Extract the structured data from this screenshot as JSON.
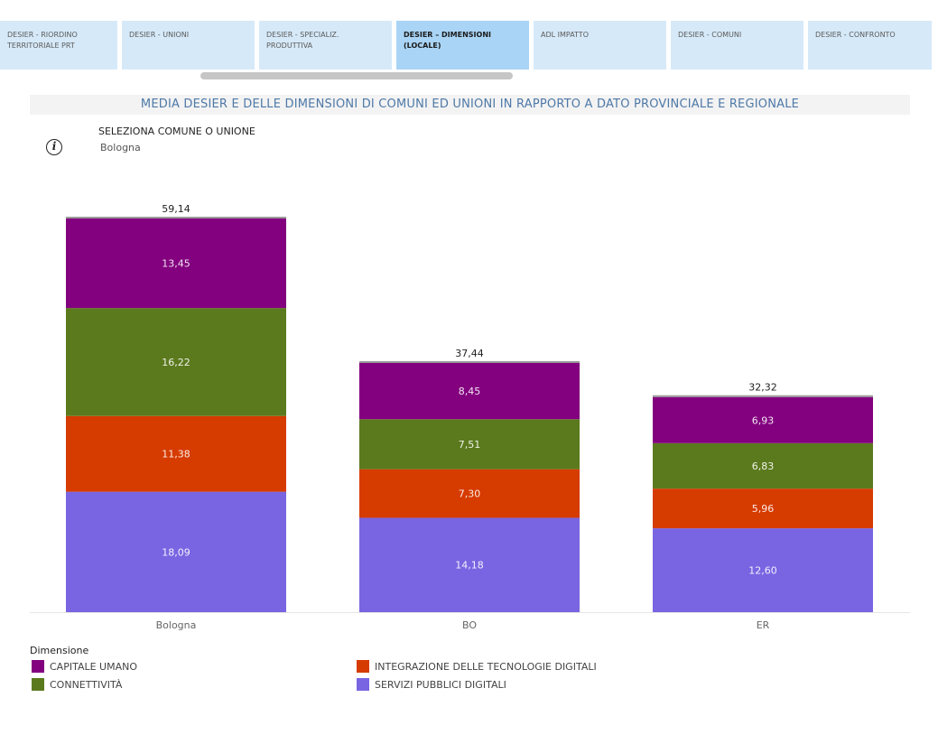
{
  "tabs": [
    {
      "label_1": "DESIER - RIORDINO",
      "label_2": "TERRITORIALE PRT",
      "active": false
    },
    {
      "label_1": "DESIER - UNIONI",
      "label_2": "",
      "active": false
    },
    {
      "label_1": "DESIER - SPECIALIZ.",
      "label_2": "PRODUTTIVA",
      "active": false
    },
    {
      "label_1": "DESIER – DIMENSIONI",
      "label_2": "(LOCALE)",
      "active": true
    },
    {
      "label_1": "ADL IMPATTO",
      "label_2": "",
      "active": false
    },
    {
      "label_1": "DESIER - COMUNI",
      "label_2": "",
      "active": false
    },
    {
      "label_1": "DESIER - CONFRONTO",
      "label_2": "",
      "active": false
    }
  ],
  "header": {
    "title": "MEDIA DESIER E DELLE DIMENSIONI DI COMUNI ED UNIONI IN RAPPORTO A DATO PROVINCIALE E REGIONALE"
  },
  "filter": {
    "label": "SELEZIONA COMUNE O UNIONE",
    "value": "Bologna"
  },
  "icons": {
    "info": "info-icon"
  },
  "chart_data": {
    "type": "bar",
    "stacked": true,
    "title": "",
    "xlabel": "",
    "ylabel": "",
    "categories": [
      "Bologna",
      "BO",
      "ER"
    ],
    "totals": [
      "59,14",
      "37,44",
      "32,32"
    ],
    "total_values": [
      59.14,
      37.44,
      32.32
    ],
    "series": [
      {
        "name": "SERVIZI PUBBLICI DIGITALI",
        "color": "#7965e2",
        "values": [
          18.09,
          14.18,
          12.6
        ],
        "labels": [
          "18,09",
          "14,18",
          "12,60"
        ]
      },
      {
        "name": "INTEGRAZIONE DELLE TECNOLOGIE DIGITALI",
        "color": "#d63b00",
        "values": [
          11.38,
          7.3,
          5.96
        ],
        "labels": [
          "11,38",
          "7,30",
          "5,96"
        ]
      },
      {
        "name": "CONNETTIVITÀ",
        "color": "#5b7a1e",
        "values": [
          16.22,
          7.51,
          6.83
        ],
        "labels": [
          "16,22",
          "7,51",
          "6,83"
        ]
      },
      {
        "name": "CAPITALE UMANO",
        "color": "#83007f",
        "values": [
          13.45,
          8.45,
          6.93
        ],
        "labels": [
          "13,45",
          "8,45",
          "6,93"
        ]
      }
    ],
    "ylim": [
      0,
      59.14
    ],
    "grid": false,
    "legend": {
      "title": "Dimensione",
      "placement": "bottom",
      "items": [
        {
          "name": "CAPITALE UMANO",
          "color": "#83007f"
        },
        {
          "name": "CONNETTIVITÀ",
          "color": "#5b7a1e"
        },
        {
          "name": "INTEGRAZIONE DELLE TECNOLOGIE DIGITALI",
          "color": "#d63b00"
        },
        {
          "name": "SERVIZI PUBBLICI DIGITALI",
          "color": "#7965e2"
        }
      ]
    }
  }
}
